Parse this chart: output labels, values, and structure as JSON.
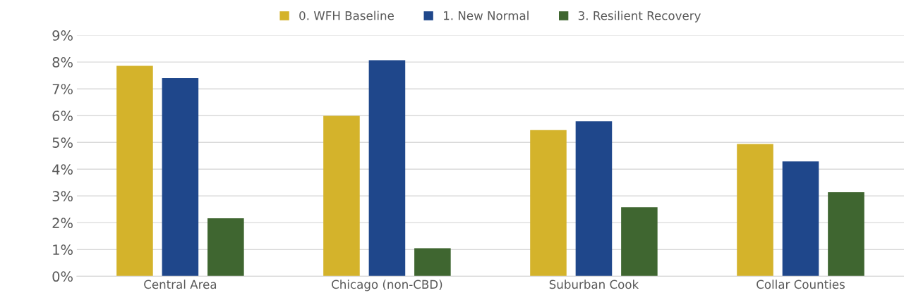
{
  "chart_data": {
    "type": "bar",
    "categories": [
      "Central Area",
      "Chicago (non-CBD)",
      "Suburban Cook",
      "Collar Counties"
    ],
    "series": [
      {
        "name": "0. WFH Baseline",
        "color": "#d4b32b",
        "values": [
          7.86,
          5.99,
          5.46,
          4.94
        ]
      },
      {
        "name": "1. New Normal",
        "color": "#1f478b",
        "values": [
          7.4,
          8.07,
          5.79,
          4.29
        ]
      },
      {
        "name": "3. Resilient Recovery",
        "color": "#3f6630",
        "values": [
          2.17,
          1.05,
          2.58,
          3.14
        ]
      }
    ],
    "ylim": [
      0,
      9
    ],
    "yticks": [
      {
        "value": 0,
        "label": "0%"
      },
      {
        "value": 1,
        "label": "1%"
      },
      {
        "value": 2,
        "label": "2%"
      },
      {
        "value": 3,
        "label": "3%"
      },
      {
        "value": 4,
        "label": "4%"
      },
      {
        "value": 5,
        "label": "5%"
      },
      {
        "value": 6,
        "label": "6%"
      },
      {
        "value": 7,
        "label": "7%"
      },
      {
        "value": 8,
        "label": "8%"
      },
      {
        "value": 9,
        "label": "9%"
      }
    ],
    "grid": "y",
    "legend": "top"
  }
}
